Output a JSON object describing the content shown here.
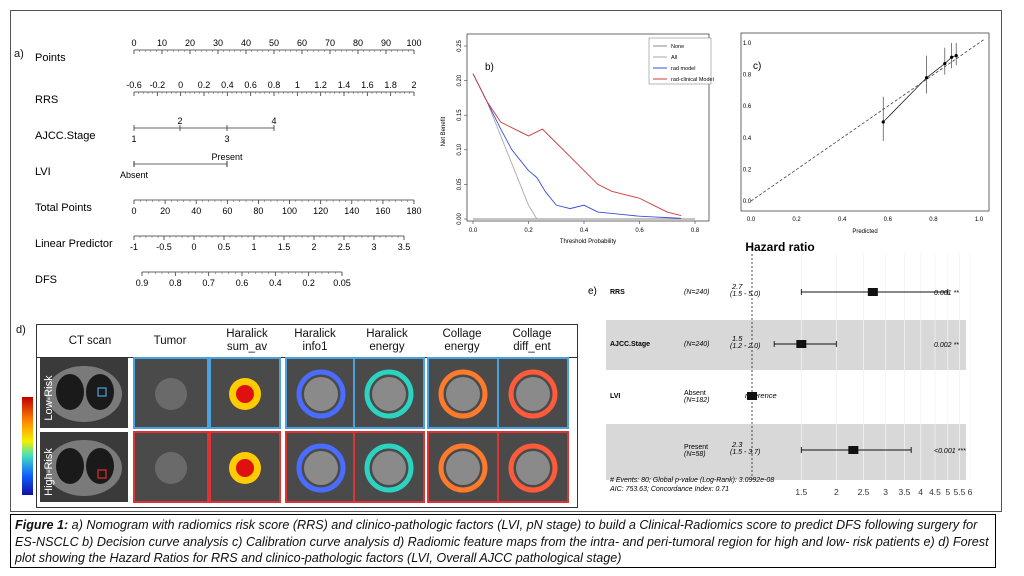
{
  "panels": {
    "a": "a)",
    "b": "b)",
    "c": "c)",
    "d": "d)",
    "e": "e)"
  },
  "nomogram": {
    "rows": [
      {
        "label": "Points",
        "ticks": [
          "0",
          "10",
          "20",
          "30",
          "40",
          "50",
          "60",
          "70",
          "80",
          "90",
          "100"
        ]
      },
      {
        "label": "RRS",
        "ticks": [
          "-0.6",
          "-0.2",
          "0",
          "0.2",
          "0.4",
          "0.6",
          "0.8",
          "1",
          "1.2",
          "1.4",
          "1.6",
          "1.8",
          "2"
        ]
      },
      {
        "label": "AJCC.Stage",
        "above": [
          "2",
          "4"
        ],
        "below": [
          "1",
          "3"
        ]
      },
      {
        "label": "LVI",
        "above": [
          "Present"
        ],
        "below": [
          "Absent"
        ]
      },
      {
        "label": "Total Points",
        "ticks": [
          "0",
          "20",
          "40",
          "60",
          "80",
          "100",
          "120",
          "140",
          "160",
          "180"
        ]
      },
      {
        "label": "Linear Predictor",
        "ticks": [
          "-1",
          "-0.5",
          "0",
          "0.5",
          "1",
          "1.5",
          "2",
          "2.5",
          "3",
          "3.5"
        ]
      },
      {
        "label": "DFS",
        "ticks": [
          "0.9",
          "0.8",
          "0.7",
          "0.6",
          "0.4",
          "0.2",
          "0.05"
        ]
      }
    ]
  },
  "chart_data": [
    {
      "type": "line",
      "panel": "b)",
      "xlabel": "Threshold Probability",
      "ylabel": "Net Benefit",
      "xticks": [
        "0.0",
        "0.2",
        "0.4",
        "0.6",
        "0.8"
      ],
      "yticks": [
        "0.00",
        "0.05",
        "0.10",
        "0.15",
        "0.20",
        "0.25"
      ],
      "xlim": [
        0,
        0.8
      ],
      "ylim": [
        0,
        0.25
      ],
      "legend_position": "top-right",
      "series": [
        {
          "name": "None",
          "color": "#888888",
          "x": [
            0,
            0.8
          ],
          "y": [
            0,
            0
          ]
        },
        {
          "name": "All",
          "color": "#aaaaaa",
          "x": [
            0,
            0.05,
            0.1,
            0.15,
            0.2,
            0.23
          ],
          "y": [
            0.21,
            0.17,
            0.12,
            0.07,
            0.02,
            0
          ]
        },
        {
          "name": "rad model",
          "color": "#3a4fd6",
          "x": [
            0,
            0.05,
            0.1,
            0.14,
            0.17,
            0.2,
            0.23,
            0.26,
            0.3,
            0.35,
            0.4,
            0.45,
            0.5,
            0.55,
            0.6,
            0.65,
            0.7,
            0.75
          ],
          "y": [
            0.21,
            0.17,
            0.13,
            0.1,
            0.085,
            0.07,
            0.06,
            0.04,
            0.02,
            0.015,
            0.02,
            0.01,
            0.008,
            0.006,
            0.004,
            0.003,
            0.002,
            0.001
          ]
        },
        {
          "name": "rad-clinical Model",
          "color": "#d03a3a",
          "x": [
            0,
            0.05,
            0.1,
            0.15,
            0.2,
            0.25,
            0.3,
            0.35,
            0.4,
            0.45,
            0.5,
            0.55,
            0.6,
            0.65,
            0.7,
            0.75
          ],
          "y": [
            0.21,
            0.17,
            0.14,
            0.13,
            0.12,
            0.13,
            0.11,
            0.09,
            0.07,
            0.05,
            0.04,
            0.035,
            0.03,
            0.02,
            0.01,
            0.005
          ]
        }
      ]
    },
    {
      "type": "scatter",
      "panel": "c)",
      "xlabel": "Predicted",
      "ylabel": "",
      "xticks": [
        "0.0",
        "0.2",
        "0.4",
        "0.6",
        "0.8",
        "1.0"
      ],
      "yticks": [
        "0.0",
        "0.2",
        "0.4",
        "0.6",
        "0.8",
        "1.0"
      ],
      "xlim": [
        0,
        1
      ],
      "ylim": [
        0,
        1
      ],
      "points": [
        {
          "x": 0.58,
          "y": 0.5,
          "lo": 0.38,
          "hi": 0.66
        },
        {
          "x": 0.77,
          "y": 0.78,
          "lo": 0.68,
          "hi": 0.92
        },
        {
          "x": 0.85,
          "y": 0.87,
          "lo": 0.8,
          "hi": 0.97
        },
        {
          "x": 0.88,
          "y": 0.91,
          "lo": 0.84,
          "hi": 1.0
        },
        {
          "x": 0.9,
          "y": 0.92,
          "lo": 0.86,
          "hi": 1.0
        }
      ]
    },
    {
      "type": "forest",
      "panel": "e)",
      "title": "Hazard ratio",
      "xticks": [
        "1.5",
        "2",
        "2.5",
        "3",
        "3.5",
        "4",
        "4.5",
        "5",
        "5.5",
        "6"
      ],
      "rows": [
        {
          "var": "RRS",
          "group": "",
          "n": "(N=240)",
          "hr": "2.7",
          "ci": "(1.5 - 5.0)",
          "p": "0.001 **",
          "est": 2.7,
          "lo": 1.5,
          "hi": 5.0
        },
        {
          "var": "AJCC.Stage",
          "group": "",
          "n": "(N=240)",
          "hr": "1.5",
          "ci": "(1.2 - 2.0)",
          "p": "0.002 **",
          "est": 1.5,
          "lo": 1.2,
          "hi": 2.0
        },
        {
          "var": "LVI",
          "group": "Absent",
          "n": "(N=182)",
          "hr": "reference",
          "ci": "",
          "p": "",
          "est": 1.0,
          "lo": null,
          "hi": null
        },
        {
          "var": "",
          "group": "Present",
          "n": "(N=58)",
          "hr": "2.3",
          "ci": "(1.5 - 3.7)",
          "p": "<0.001 ***",
          "est": 2.3,
          "lo": 1.5,
          "hi": 3.7
        }
      ],
      "footer": [
        "# Events: 80; Global p-value (Log-Rank): 3.0992e-08",
        "AIC: 753.63; Concordance Index: 0.71"
      ]
    }
  ],
  "feature_maps": {
    "headers": [
      "CT scan",
      "Tumor",
      "Haralick sum_av",
      "Haralick info1",
      "Haralick energy",
      "Collage energy",
      "Collage diff_ent"
    ],
    "rows": [
      "Low-Risk",
      "High-Risk"
    ]
  },
  "caption": {
    "lead": "Figure 1:",
    "text": " a) Nomogram with radiomics risk score (RRS) and clinico-pathologic factors (LVI, pN stage) to build a Clinical-Radiomics score to predict DFS following surgery for ES-NSCLC b) Decision curve analysis c) Calibration curve analysis d) Radiomic feature maps from the intra- and peri-tumoral region for high and low- risk patients e) d) Forest plot showing the Hazard Ratios for RRS and clinico-pathologic factors (LVI, Overall AJCC pathological stage)"
  }
}
